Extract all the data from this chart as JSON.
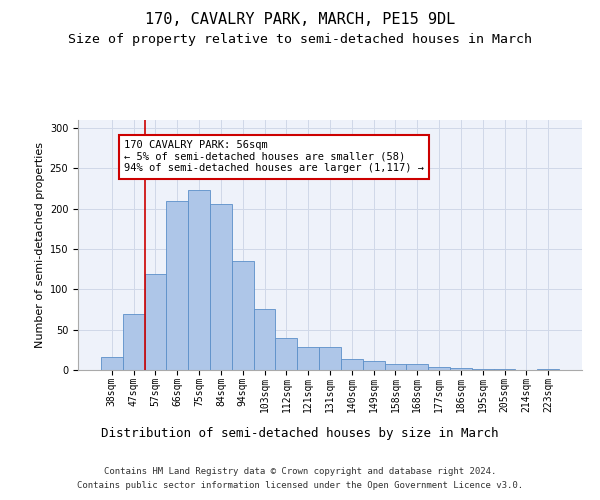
{
  "title": "170, CAVALRY PARK, MARCH, PE15 9DL",
  "subtitle": "Size of property relative to semi-detached houses in March",
  "xlabel": "Distribution of semi-detached houses by size in March",
  "ylabel": "Number of semi-detached properties",
  "footer_line1": "Contains HM Land Registry data © Crown copyright and database right 2024.",
  "footer_line2": "Contains public sector information licensed under the Open Government Licence v3.0.",
  "bar_labels": [
    "38sqm",
    "47sqm",
    "57sqm",
    "66sqm",
    "75sqm",
    "84sqm",
    "94sqm",
    "103sqm",
    "112sqm",
    "121sqm",
    "131sqm",
    "140sqm",
    "149sqm",
    "158sqm",
    "168sqm",
    "177sqm",
    "186sqm",
    "195sqm",
    "205sqm",
    "214sqm",
    "223sqm"
  ],
  "bar_values": [
    16,
    70,
    119,
    209,
    223,
    206,
    135,
    76,
    40,
    28,
    28,
    14,
    11,
    7,
    7,
    4,
    2,
    1,
    1,
    0,
    1
  ],
  "bar_color": "#aec6e8",
  "bar_edge_color": "#5b8fc9",
  "annotation_text": "170 CAVALRY PARK: 56sqm\n← 5% of semi-detached houses are smaller (58)\n94% of semi-detached houses are larger (1,117) →",
  "vline_x": 1.5,
  "ylim": [
    0,
    310
  ],
  "grid_color": "#d0d8e8",
  "background_color": "#eef2fa",
  "vline_color": "#cc0000",
  "annotation_border_color": "#cc0000",
  "title_fontsize": 11,
  "subtitle_fontsize": 9.5,
  "ylabel_fontsize": 8,
  "xlabel_fontsize": 9,
  "tick_fontsize": 7,
  "annotation_fontsize": 7.5,
  "footer_fontsize": 6.5
}
